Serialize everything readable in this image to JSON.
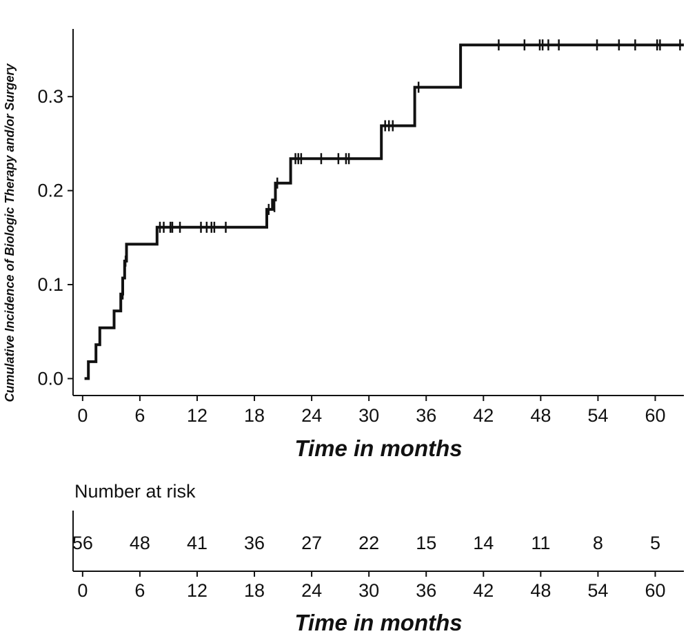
{
  "chart_data": {
    "type": "line",
    "subtype": "kaplan-meier-cumulative-incidence",
    "ylabel": "Cumulative Incidence of Biologic Therapy and/or Surgery",
    "xlabel": "Time in months",
    "xlim": [
      -1,
      63
    ],
    "ylim": [
      -0.018,
      0.372
    ],
    "x_ticks": [
      0,
      6,
      12,
      18,
      24,
      30,
      36,
      42,
      48,
      54,
      60
    ],
    "y_ticks": [
      0.0,
      0.1,
      0.2,
      0.3
    ],
    "y_tick_labels": [
      "0.0",
      "0.1",
      "0.2",
      "0.3"
    ],
    "grid": false,
    "series": [
      {
        "step_points": [
          [
            0.2,
            0.0
          ],
          [
            0.6,
            0.018
          ],
          [
            1.4,
            0.036
          ],
          [
            1.8,
            0.054
          ],
          [
            3.3,
            0.072
          ],
          [
            4.0,
            0.09
          ],
          [
            4.2,
            0.107
          ],
          [
            4.4,
            0.125
          ],
          [
            4.6,
            0.143
          ],
          [
            7.8,
            0.161
          ],
          [
            19.3,
            0.18
          ],
          [
            19.9,
            0.19
          ],
          [
            20.2,
            0.208
          ],
          [
            21.8,
            0.234
          ],
          [
            31.3,
            0.269
          ],
          [
            34.8,
            0.31
          ],
          [
            39.6,
            0.355
          ],
          [
            63.0,
            0.355
          ]
        ],
        "censor_marks": [
          [
            4.2,
            0.09
          ],
          [
            4.5,
            0.125
          ],
          [
            8.1,
            0.161
          ],
          [
            8.5,
            0.161
          ],
          [
            9.2,
            0.161
          ],
          [
            9.4,
            0.161
          ],
          [
            10.2,
            0.161
          ],
          [
            12.4,
            0.161
          ],
          [
            13.0,
            0.161
          ],
          [
            13.5,
            0.161
          ],
          [
            13.8,
            0.161
          ],
          [
            15.0,
            0.161
          ],
          [
            19.5,
            0.18
          ],
          [
            20.1,
            0.183
          ],
          [
            20.4,
            0.208
          ],
          [
            22.3,
            0.234
          ],
          [
            22.6,
            0.234
          ],
          [
            22.9,
            0.234
          ],
          [
            25.0,
            0.234
          ],
          [
            26.8,
            0.234
          ],
          [
            27.6,
            0.234
          ],
          [
            27.9,
            0.234
          ],
          [
            31.7,
            0.269
          ],
          [
            32.1,
            0.269
          ],
          [
            32.5,
            0.269
          ],
          [
            35.2,
            0.31
          ],
          [
            43.6,
            0.355
          ],
          [
            46.3,
            0.355
          ],
          [
            47.9,
            0.355
          ],
          [
            48.2,
            0.355
          ],
          [
            48.8,
            0.355
          ],
          [
            49.9,
            0.355
          ],
          [
            53.9,
            0.355
          ],
          [
            56.2,
            0.355
          ],
          [
            57.9,
            0.355
          ],
          [
            60.2,
            0.355
          ],
          [
            60.5,
            0.355
          ],
          [
            62.6,
            0.355
          ]
        ]
      }
    ]
  },
  "risk_table": {
    "title": "Number at risk",
    "x": [
      0,
      6,
      12,
      18,
      24,
      30,
      36,
      42,
      48,
      54,
      60
    ],
    "values": [
      "56",
      "48",
      "41",
      "36",
      "27",
      "22",
      "15",
      "14",
      "11",
      "8",
      "5"
    ],
    "xlabel": "Time in months"
  }
}
